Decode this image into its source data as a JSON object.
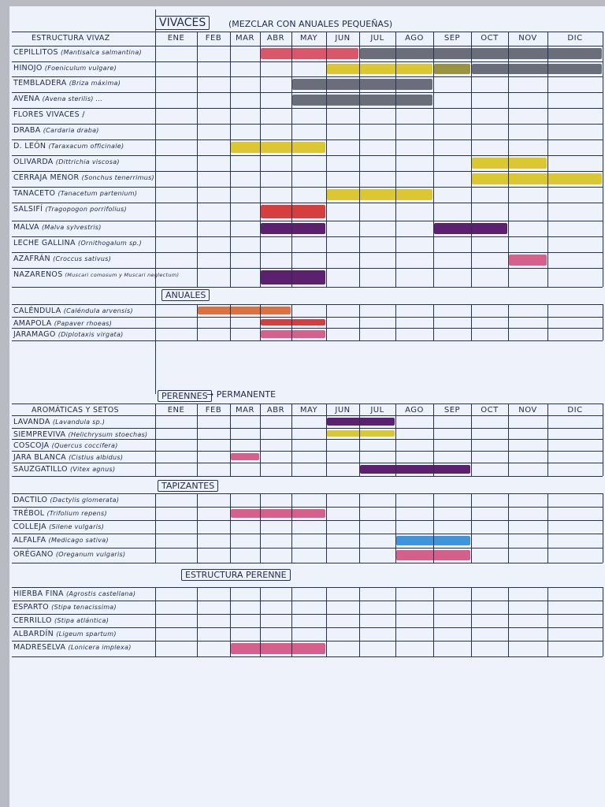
{
  "months": [
    "ENE",
    "FEB",
    "MAR",
    "ABR",
    "MAY",
    "JUN",
    "JUL",
    "AGO",
    "SEP",
    "OCT",
    "NOV",
    "DIC"
  ],
  "colors": {
    "red": "#d9455a",
    "dark": "#5a5f6b",
    "yellow": "#d8c21c",
    "olive": "#8f8a2a",
    "purple": "#4b0a5e",
    "pink": "#d2507f",
    "orange": "#d9642a",
    "blue": "#2f8ad6",
    "crimson": "#d22a2a"
  },
  "sections": [
    {
      "title": "VIVACES",
      "note": "(MEZCLAR CON ANUALES PEQUEÑAS)",
      "header_label": "ESTRUCTURA VIVAZ",
      "show_months": true,
      "rows": [
        {
          "name": "CEPILLITOS",
          "latin": "(Mantisalca salmantina)",
          "bars": [
            {
              "from": "ABR",
              "to": "JUN",
              "color": "red"
            },
            {
              "from": "JUL",
              "to": "DIC",
              "color": "dark",
              "hatch": true
            }
          ]
        },
        {
          "name": "HINOJO",
          "latin": "(Foeniculum vulgare)",
          "bars": [
            {
              "from": "JUN",
              "to": "AGO",
              "color": "yellow"
            },
            {
              "from": "SEP",
              "to": "SEP",
              "color": "olive",
              "hatch": true
            },
            {
              "from": "OCT",
              "to": "DIC",
              "color": "dark",
              "hatch": true
            }
          ]
        },
        {
          "name": "TEMBLADERA",
          "latin": "(Briza máxima)",
          "bars": [
            {
              "from": "MAY",
              "to": "AGO",
              "color": "dark"
            }
          ]
        },
        {
          "name": "AVENA",
          "latin": "(Avena sterilis) ...",
          "bars": [
            {
              "from": "MAY",
              "to": "AGO",
              "color": "dark"
            }
          ]
        },
        {
          "name": "FLORES VIVACES /",
          "latin": "",
          "bars": []
        },
        {
          "name": "DRABA",
          "latin": "(Cardaria draba)",
          "bars": []
        },
        {
          "name": "D. LEÓN",
          "latin": "(Taraxacum officinale)",
          "bars": [
            {
              "from": "MAR",
              "to": "MAY",
              "color": "yellow"
            }
          ]
        },
        {
          "name": "OLIVARDA",
          "latin": "(Dittrichia viscosa)",
          "bars": [
            {
              "from": "OCT",
              "to": "NOV",
              "color": "yellow"
            }
          ]
        },
        {
          "name": "CERRAJA MENOR",
          "latin": "(Sonchus tenerrimus)",
          "bars": [
            {
              "from": "OCT",
              "to": "DIC",
              "color": "yellow"
            }
          ]
        },
        {
          "name": "TANACETO",
          "latin": "(Tanacetum partenium)",
          "bars": [
            {
              "from": "JUN",
              "to": "AGO",
              "color": "yellow"
            }
          ]
        },
        {
          "name": "SALSIFÍ",
          "latin": "(Tragopogon porrifolius)",
          "bars": [
            {
              "from": "ABR",
              "to": "MAY",
              "color": "crimson"
            }
          ]
        },
        {
          "name": "MALVA",
          "latin": "(Malva sylvestris)",
          "bars": [
            {
              "from": "ABR",
              "to": "MAY",
              "color": "purple"
            },
            {
              "from": "SEP",
              "to": "OCT",
              "color": "purple"
            }
          ]
        },
        {
          "name": "LECHE GALLINA",
          "latin": "(Ornithogalum sp.)",
          "bars": []
        },
        {
          "name": "AZAFRÁN",
          "latin": "(Croccus sativus)",
          "bars": [
            {
              "from": "NOV",
              "to": "NOV",
              "color": "pink"
            }
          ]
        },
        {
          "name": "NAZARENOS",
          "latin": "(Muscari comosum y Muscari neglectum)",
          "bars": [
            {
              "from": "ABR",
              "to": "MAY",
              "color": "purple"
            }
          ]
        }
      ]
    },
    {
      "title": "ANUALES",
      "note": "",
      "header_label": "",
      "show_months": false,
      "rows": [
        {
          "name": "CALÉNDULA",
          "latin": "(Caléndula arvensis)",
          "bars": [
            {
              "from": "FEB",
              "to": "ABR",
              "color": "orange"
            }
          ]
        },
        {
          "name": "AMAPOLA",
          "latin": "(Papaver rhoeas)",
          "bars": [
            {
              "from": "ABR",
              "to": "MAY",
              "color": "crimson"
            }
          ]
        },
        {
          "name": "JARAMAGO",
          "latin": "(Diplotaxis virgata)",
          "bars": [
            {
              "from": "ABR",
              "to": "MAY",
              "color": "pink"
            }
          ]
        }
      ]
    },
    {
      "title": "PERENNES",
      "note": "→ PERMANENTE",
      "header_label": "AROMÁTICAS Y SETOS",
      "show_months": true,
      "rows": [
        {
          "name": "LAVANDA",
          "latin": "(Lavandula sp.)",
          "bars": [
            {
              "from": "JUN",
              "to": "JUL",
              "color": "purple"
            }
          ]
        },
        {
          "name": "SIEMPREVIVA",
          "latin": "(Helichrysum stoechas)",
          "bars": [
            {
              "from": "JUN",
              "to": "JUL",
              "color": "yellow"
            }
          ]
        },
        {
          "name": "COSCOJA",
          "latin": "(Quercus coccifera)",
          "bars": []
        },
        {
          "name": "JARA BLANCA",
          "latin": "(Cistius albidus)",
          "bars": [
            {
              "from": "MAR",
              "to": "MAR",
              "color": "pink"
            }
          ]
        },
        {
          "name": "SAUZGATILLO",
          "latin": "(Vitex agnus)",
          "bars": [
            {
              "from": "JUL",
              "to": "SEP",
              "color": "purple"
            }
          ]
        }
      ]
    },
    {
      "title": "TAPIZANTES",
      "note": "",
      "header_label": "",
      "show_months": false,
      "rows": [
        {
          "name": "DACTILO",
          "latin": "(Dactylis glomerata)",
          "bars": []
        },
        {
          "name": "TRÉBOL",
          "latin": "(Trifolium repens)",
          "bars": [
            {
              "from": "MAR",
              "to": "MAY",
              "color": "pink"
            }
          ]
        },
        {
          "name": "COLLEJA",
          "latin": "(Silene vulgaris)",
          "bars": []
        },
        {
          "name": "ALFALFA",
          "latin": "(Medicago sativa)",
          "bars": [
            {
              "from": "AGO",
              "to": "SEP",
              "color": "blue"
            }
          ]
        },
        {
          "name": "ORÉGANO",
          "latin": "(Oreganum vulgaris)",
          "bars": [
            {
              "from": "AGO",
              "to": "SEP",
              "color": "pink"
            }
          ]
        }
      ]
    },
    {
      "title": "ESTRUCTURA PERENNE",
      "note": "",
      "header_label": "",
      "show_months": false,
      "rows": [
        {
          "name": "HIERBA FINA",
          "latin": "(Agrostis castellana)",
          "bars": []
        },
        {
          "name": "ESPARTO",
          "latin": "(Stipa tenacissima)",
          "bars": []
        },
        {
          "name": "CERRILLO",
          "latin": "(Stipa atlántica)",
          "bars": []
        },
        {
          "name": "ALBARDÍN",
          "latin": "(Ligeum spartum)",
          "bars": []
        },
        {
          "name": "MADRESELVA",
          "latin": "(Lonicera implexa)",
          "bars": [
            {
              "from": "MAR",
              "to": "MAY",
              "color": "pink"
            }
          ]
        }
      ]
    }
  ]
}
